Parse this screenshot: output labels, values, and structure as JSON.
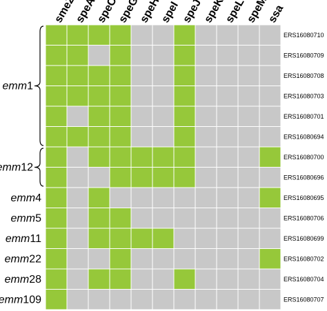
{
  "chart_data": {
    "type": "heatmap",
    "columns": [
      "smeZ",
      "speA",
      "speC",
      "speG",
      "speH",
      "speI",
      "speJ",
      "speK",
      "speL",
      "speM",
      "ssa"
    ],
    "rows": [
      "ERS16080710",
      "ERS16080709",
      "ERS16080708",
      "ERS16080703",
      "ERS16080701",
      "ERS16080694",
      "ERS16080700",
      "ERS16080696",
      "ERS16080695",
      "ERS16080706",
      "ERS16080699",
      "ERS16080702",
      "ERS16080704",
      "ERS16080707"
    ],
    "values": [
      [
        1,
        1,
        1,
        1,
        0,
        0,
        1,
        0,
        0,
        0,
        0
      ],
      [
        1,
        1,
        0,
        1,
        0,
        0,
        1,
        0,
        0,
        0,
        0
      ],
      [
        1,
        1,
        1,
        1,
        0,
        0,
        1,
        0,
        0,
        0,
        0
      ],
      [
        1,
        1,
        1,
        1,
        0,
        0,
        1,
        0,
        0,
        0,
        0
      ],
      [
        1,
        0,
        1,
        1,
        0,
        0,
        1,
        0,
        0,
        0,
        0
      ],
      [
        1,
        1,
        1,
        1,
        0,
        0,
        1,
        0,
        0,
        0,
        0
      ],
      [
        1,
        0,
        1,
        1,
        1,
        1,
        1,
        0,
        0,
        0,
        1
      ],
      [
        1,
        0,
        0,
        1,
        1,
        1,
        1,
        0,
        0,
        0,
        0
      ],
      [
        1,
        0,
        1,
        0,
        0,
        0,
        0,
        0,
        0,
        0,
        1
      ],
      [
        1,
        0,
        1,
        1,
        0,
        0,
        0,
        0,
        0,
        0,
        0
      ],
      [
        1,
        0,
        1,
        1,
        1,
        1,
        0,
        0,
        0,
        0,
        0
      ],
      [
        1,
        0,
        0,
        1,
        0,
        0,
        0,
        0,
        0,
        0,
        1
      ],
      [
        1,
        0,
        1,
        1,
        0,
        0,
        1,
        0,
        0,
        0,
        0
      ],
      [
        1,
        0,
        0,
        0,
        0,
        0,
        0,
        0,
        0,
        0,
        0
      ]
    ],
    "groups": [
      {
        "prefix": "emm",
        "number": "1",
        "first_row": 0,
        "last_row": 5,
        "bracket": true
      },
      {
        "prefix": "emm",
        "number": "12",
        "first_row": 6,
        "last_row": 7,
        "bracket": true
      },
      {
        "prefix": "emm",
        "number": "4",
        "first_row": 8,
        "last_row": 8,
        "bracket": false
      },
      {
        "prefix": "emm",
        "number": "5",
        "first_row": 9,
        "last_row": 9,
        "bracket": false
      },
      {
        "prefix": "emm",
        "number": "11",
        "first_row": 10,
        "last_row": 10,
        "bracket": false
      },
      {
        "prefix": "emm",
        "number": "22",
        "first_row": 11,
        "last_row": 11,
        "bracket": false
      },
      {
        "prefix": "emm",
        "number": "28",
        "first_row": 12,
        "last_row": 12,
        "bracket": false
      },
      {
        "prefix": "emm",
        "number": "109",
        "first_row": 13,
        "last_row": 13,
        "bracket": false
      }
    ],
    "colors": {
      "present": "#96c83a",
      "absent": "#c8c8c8"
    },
    "title": "",
    "legend": "none"
  }
}
